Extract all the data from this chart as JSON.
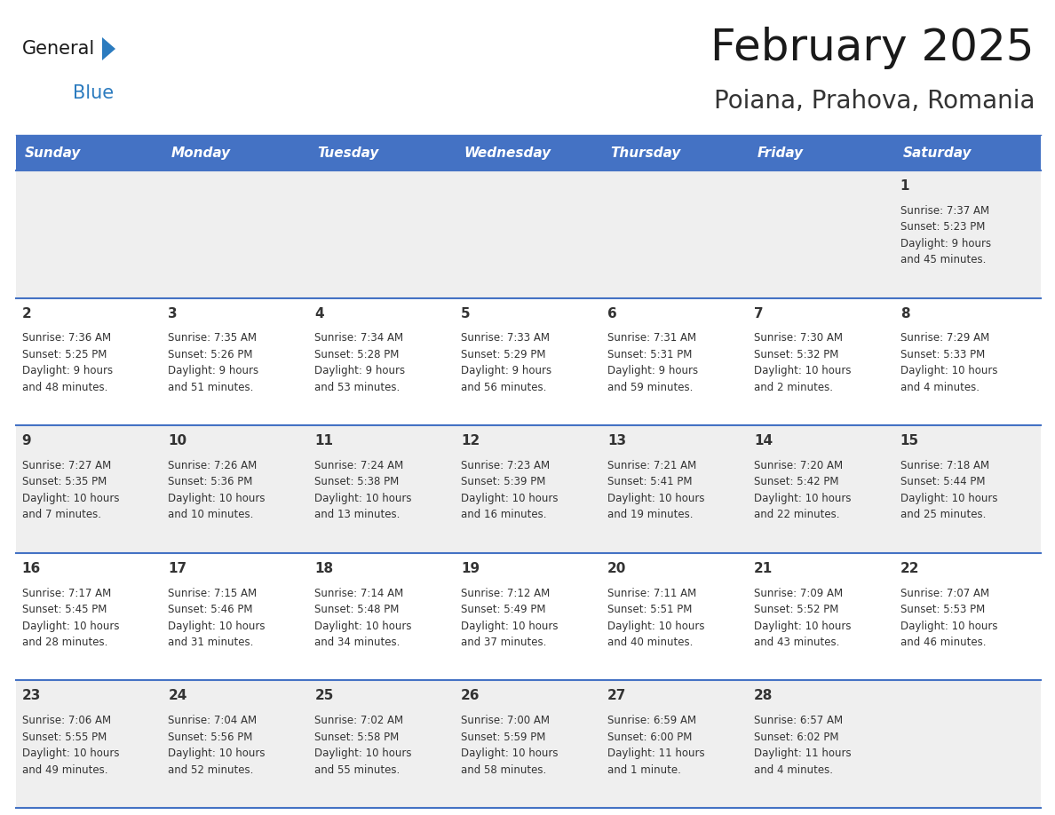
{
  "title": "February 2025",
  "subtitle": "Poiana, Prahova, Romania",
  "days_of_week": [
    "Sunday",
    "Monday",
    "Tuesday",
    "Wednesday",
    "Thursday",
    "Friday",
    "Saturday"
  ],
  "header_bg": "#4472C4",
  "header_text": "#FFFFFF",
  "row_bg_odd": "#EFEFEF",
  "row_bg_even": "#FFFFFF",
  "cell_border_color": "#4472C4",
  "day_num_color": "#333333",
  "text_color": "#333333",
  "logo_general_color": "#1a1a1a",
  "logo_blue_color": "#2B7BBF",
  "logo_triangle_color": "#2B7BBF",
  "title_color": "#1a1a1a",
  "subtitle_color": "#333333",
  "calendar_data": [
    [
      null,
      null,
      null,
      null,
      null,
      null,
      {
        "day": 1,
        "sunrise": "7:37 AM",
        "sunset": "5:23 PM",
        "daylight": "9 hours\nand 45 minutes."
      }
    ],
    [
      {
        "day": 2,
        "sunrise": "7:36 AM",
        "sunset": "5:25 PM",
        "daylight": "9 hours\nand 48 minutes."
      },
      {
        "day": 3,
        "sunrise": "7:35 AM",
        "sunset": "5:26 PM",
        "daylight": "9 hours\nand 51 minutes."
      },
      {
        "day": 4,
        "sunrise": "7:34 AM",
        "sunset": "5:28 PM",
        "daylight": "9 hours\nand 53 minutes."
      },
      {
        "day": 5,
        "sunrise": "7:33 AM",
        "sunset": "5:29 PM",
        "daylight": "9 hours\nand 56 minutes."
      },
      {
        "day": 6,
        "sunrise": "7:31 AM",
        "sunset": "5:31 PM",
        "daylight": "9 hours\nand 59 minutes."
      },
      {
        "day": 7,
        "sunrise": "7:30 AM",
        "sunset": "5:32 PM",
        "daylight": "10 hours\nand 2 minutes."
      },
      {
        "day": 8,
        "sunrise": "7:29 AM",
        "sunset": "5:33 PM",
        "daylight": "10 hours\nand 4 minutes."
      }
    ],
    [
      {
        "day": 9,
        "sunrise": "7:27 AM",
        "sunset": "5:35 PM",
        "daylight": "10 hours\nand 7 minutes."
      },
      {
        "day": 10,
        "sunrise": "7:26 AM",
        "sunset": "5:36 PM",
        "daylight": "10 hours\nand 10 minutes."
      },
      {
        "day": 11,
        "sunrise": "7:24 AM",
        "sunset": "5:38 PM",
        "daylight": "10 hours\nand 13 minutes."
      },
      {
        "day": 12,
        "sunrise": "7:23 AM",
        "sunset": "5:39 PM",
        "daylight": "10 hours\nand 16 minutes."
      },
      {
        "day": 13,
        "sunrise": "7:21 AM",
        "sunset": "5:41 PM",
        "daylight": "10 hours\nand 19 minutes."
      },
      {
        "day": 14,
        "sunrise": "7:20 AM",
        "sunset": "5:42 PM",
        "daylight": "10 hours\nand 22 minutes."
      },
      {
        "day": 15,
        "sunrise": "7:18 AM",
        "sunset": "5:44 PM",
        "daylight": "10 hours\nand 25 minutes."
      }
    ],
    [
      {
        "day": 16,
        "sunrise": "7:17 AM",
        "sunset": "5:45 PM",
        "daylight": "10 hours\nand 28 minutes."
      },
      {
        "day": 17,
        "sunrise": "7:15 AM",
        "sunset": "5:46 PM",
        "daylight": "10 hours\nand 31 minutes."
      },
      {
        "day": 18,
        "sunrise": "7:14 AM",
        "sunset": "5:48 PM",
        "daylight": "10 hours\nand 34 minutes."
      },
      {
        "day": 19,
        "sunrise": "7:12 AM",
        "sunset": "5:49 PM",
        "daylight": "10 hours\nand 37 minutes."
      },
      {
        "day": 20,
        "sunrise": "7:11 AM",
        "sunset": "5:51 PM",
        "daylight": "10 hours\nand 40 minutes."
      },
      {
        "day": 21,
        "sunrise": "7:09 AM",
        "sunset": "5:52 PM",
        "daylight": "10 hours\nand 43 minutes."
      },
      {
        "day": 22,
        "sunrise": "7:07 AM",
        "sunset": "5:53 PM",
        "daylight": "10 hours\nand 46 minutes."
      }
    ],
    [
      {
        "day": 23,
        "sunrise": "7:06 AM",
        "sunset": "5:55 PM",
        "daylight": "10 hours\nand 49 minutes."
      },
      {
        "day": 24,
        "sunrise": "7:04 AM",
        "sunset": "5:56 PM",
        "daylight": "10 hours\nand 52 minutes."
      },
      {
        "day": 25,
        "sunrise": "7:02 AM",
        "sunset": "5:58 PM",
        "daylight": "10 hours\nand 55 minutes."
      },
      {
        "day": 26,
        "sunrise": "7:00 AM",
        "sunset": "5:59 PM",
        "daylight": "10 hours\nand 58 minutes."
      },
      {
        "day": 27,
        "sunrise": "6:59 AM",
        "sunset": "6:00 PM",
        "daylight": "11 hours\nand 1 minute."
      },
      {
        "day": 28,
        "sunrise": "6:57 AM",
        "sunset": "6:02 PM",
        "daylight": "11 hours\nand 4 minutes."
      },
      null
    ]
  ]
}
